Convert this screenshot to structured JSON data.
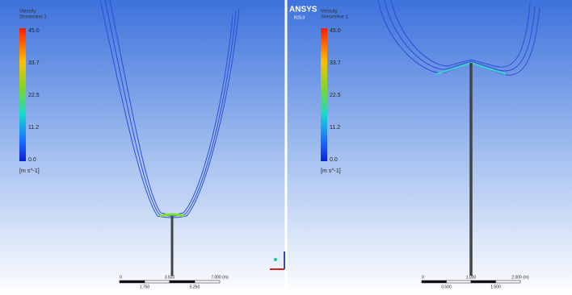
{
  "logo": {
    "name": "ANSYS",
    "version": "R15.0"
  },
  "panels": [
    {
      "legend": {
        "title": [
          "Velocity",
          "Streamline 1"
        ],
        "ticks": [
          "45.0",
          "33.7",
          "22.5",
          "11.2",
          "0.0"
        ],
        "unit": "[m s^-1]"
      },
      "scale": {
        "top": [
          "0",
          "3.500",
          "7.000 (m)"
        ],
        "bottom": [
          "1.750",
          "5.250"
        ]
      }
    },
    {
      "legend": {
        "title": [
          "Velocity",
          "Streamline 1"
        ],
        "ticks": [
          "45.0",
          "33.7",
          "22.5",
          "11.2",
          "0.0"
        ],
        "unit": "[m s^-1]"
      },
      "scale": {
        "top": [
          "0",
          "1.000",
          "2.000 (m)"
        ],
        "bottom": [
          "0.500",
          "1.500"
        ]
      }
    }
  ]
}
